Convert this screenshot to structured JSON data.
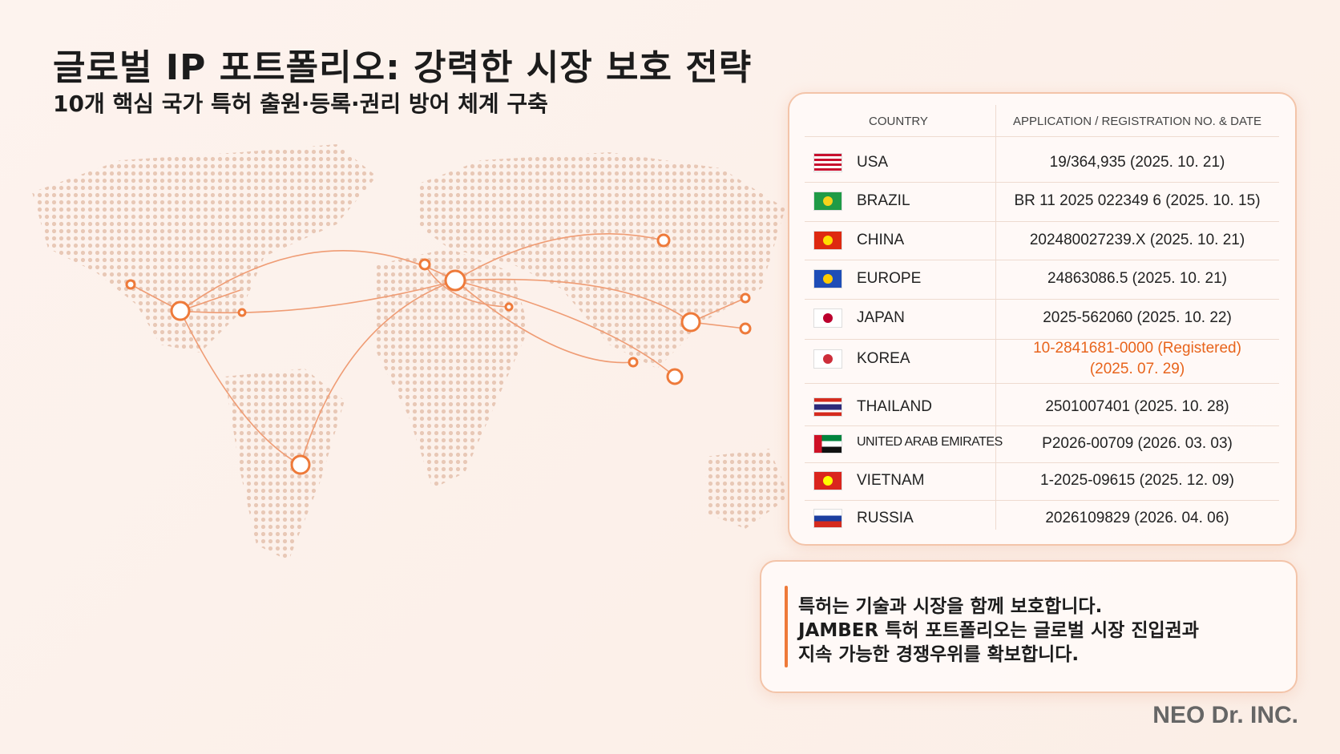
{
  "header": {
    "title": "글로벌 IP 포트폴리오: 강력한 시장 보호 전략",
    "subtitle": "10개 핵심 국가 특허 출원·등록·권리 방어 체계 구축"
  },
  "table": {
    "columns": [
      "COUNTRY",
      "APPLICATION / REGISTRATION NO. & DATE"
    ],
    "rows": [
      {
        "country": "USA",
        "registration": [
          "19/364,935 (2025. 10. 21)"
        ]
      },
      {
        "country": "BRAZIL",
        "registration": [
          "BR 11 2025 022349 6 (2025. 10. 15)"
        ]
      },
      {
        "country": "CHINA",
        "registration": [
          "202480027239.X (2025. 10. 21)"
        ]
      },
      {
        "country": "EUROPE",
        "registration": [
          "24863086.5 (2025. 10. 21)"
        ]
      },
      {
        "country": "JAPAN",
        "registration": [
          "2025-562060 (2025. 10. 22)"
        ]
      },
      {
        "country": "KOREA",
        "registration": [
          "10-2841681-0000 (Registered)",
          "(2025. 07. 29)"
        ]
      },
      {
        "country": "THAILAND",
        "registration": [
          "2501007401 (2025. 10. 28)"
        ]
      },
      {
        "country": "UNITED ARAB EMIRATES",
        "registration": [
          "P2026-00709 (2026. 03. 03)"
        ]
      },
      {
        "country": "VIETNAM",
        "registration": [
          "1-2025-09615 (2025. 12. 09)"
        ]
      },
      {
        "country": "RUSSIA",
        "registration": [
          "2026109829 (2026. 04. 06)"
        ]
      }
    ]
  },
  "callout": {
    "lines": [
      "특허는 기술과 시장을 함께 보호합니다.",
      "JAMBER 특허 포트폴리오는 글로벌 시장 진입권과",
      "지속 가능한 경쟁우위를 확보합니다."
    ]
  },
  "footer": {
    "brand": "NEO Dr. INC."
  }
}
